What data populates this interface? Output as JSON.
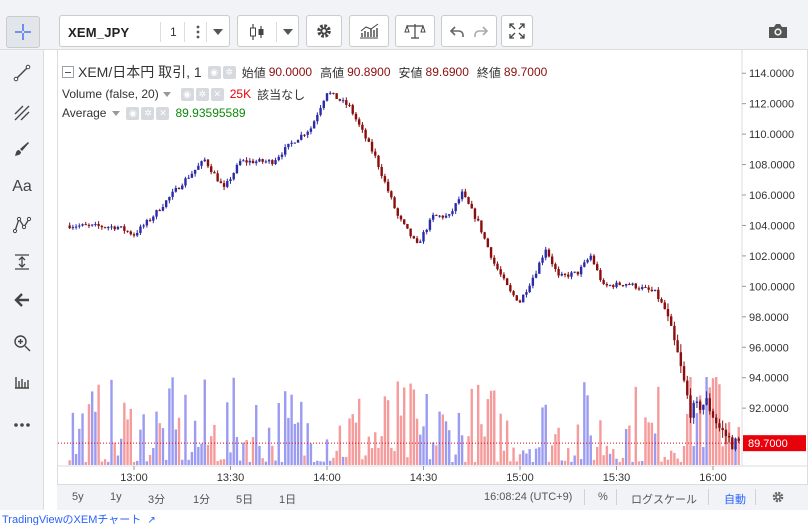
{
  "toolbar": {
    "symbol": "XEM_JPY",
    "interval": "1",
    "icons": [
      "crosshair-icon",
      "more-vert-icon",
      "dropdown-icon",
      "candles-icon",
      "gear-icon",
      "indicators-icon",
      "compare-icon",
      "undo-icon",
      "redo-icon",
      "fullscreen-icon",
      "camera-icon"
    ]
  },
  "left_tools": [
    "crosshair-icon",
    "trendline-icon",
    "fib-icon",
    "brush-icon",
    "text-icon",
    "pattern-icon",
    "measure-icon",
    "back-arrow-icon",
    "zoom-in-icon",
    "ruler-icon",
    "more-icon"
  ],
  "text_tool_label": "Aa",
  "legend": {
    "main": {
      "title": "XEM/日本円 取引, 1",
      "open_label": "始値",
      "open": "90.0000",
      "high_label": "高値",
      "high": "90.8900",
      "low_label": "安値",
      "low": "89.6900",
      "close_label": "終値",
      "close": "89.7000"
    },
    "volume": {
      "label": "Volume (false, 20)",
      "value": "25K",
      "na": "該当なし"
    },
    "average": {
      "label": "Average",
      "value": "89.93595589"
    }
  },
  "price_axis": {
    "labels": [
      "114.0000",
      "112.0000",
      "110.0000",
      "108.0000",
      "106.0000",
      "104.0000",
      "102.0000",
      "100.0000",
      "98.0000",
      "96.0000",
      "94.0000",
      "92.0000"
    ],
    "last_price": "89.7000",
    "last_price_color": "#e8000b"
  },
  "time_axis": {
    "labels": [
      "13:00",
      "13:30",
      "14:00",
      "14:30",
      "15:00",
      "15:30",
      "16:00"
    ]
  },
  "chart_data": {
    "type": "candlestick",
    "x_start": "12:39",
    "x_end": "16:08",
    "ylim": [
      88.2,
      115.0
    ],
    "up_color": "#2b2ba8",
    "down_color": "#8b0e0e",
    "keypoints": [
      {
        "time": "12:40",
        "price": 104.0
      },
      {
        "time": "12:55",
        "price": 103.9
      },
      {
        "time": "13:00",
        "price": 103.4
      },
      {
        "time": "13:05",
        "price": 104.4
      },
      {
        "time": "13:15",
        "price": 106.8
      },
      {
        "time": "13:22",
        "price": 108.3
      },
      {
        "time": "13:28",
        "price": 106.4
      },
      {
        "time": "13:33",
        "price": 108.2
      },
      {
        "time": "13:43",
        "price": 108.2
      },
      {
        "time": "13:50",
        "price": 109.6
      },
      {
        "time": "13:55",
        "price": 110.4
      },
      {
        "time": "14:00",
        "price": 112.8
      },
      {
        "time": "14:07",
        "price": 111.8
      },
      {
        "time": "14:15",
        "price": 108.5
      },
      {
        "time": "14:22",
        "price": 104.6
      },
      {
        "time": "14:28",
        "price": 102.7
      },
      {
        "time": "14:33",
        "price": 104.6
      },
      {
        "time": "14:38",
        "price": 104.6
      },
      {
        "time": "14:42",
        "price": 106.1
      },
      {
        "time": "14:47",
        "price": 104.2
      },
      {
        "time": "14:52",
        "price": 101.5
      },
      {
        "time": "14:57",
        "price": 99.6
      },
      {
        "time": "15:00",
        "price": 99.0
      },
      {
        "time": "15:05",
        "price": 101.0
      },
      {
        "time": "15:08",
        "price": 102.5
      },
      {
        "time": "15:12",
        "price": 100.6
      },
      {
        "time": "15:18",
        "price": 100.9
      },
      {
        "time": "15:22",
        "price": 102.0
      },
      {
        "time": "15:26",
        "price": 100.0
      },
      {
        "time": "15:33",
        "price": 100.2
      },
      {
        "time": "15:42",
        "price": 99.6
      },
      {
        "time": "15:45",
        "price": 98.5
      },
      {
        "time": "15:49",
        "price": 95.5
      },
      {
        "time": "15:53",
        "price": 91.8
      },
      {
        "time": "15:58",
        "price": 92.4
      },
      {
        "time": "16:02",
        "price": 90.7
      },
      {
        "time": "16:06",
        "price": 89.7
      }
    ],
    "volume_colors": {
      "up": "#8a8af0",
      "down": "#f38a8a"
    }
  },
  "bottom_bar": {
    "ranges": [
      "5y",
      "1y",
      "3分",
      "1分",
      "5日",
      "1日"
    ],
    "clock": "16:08:24 (UTC+9)",
    "percent": "%",
    "log": "ログスケール",
    "auto": "自動"
  },
  "footer": {
    "link": "TradingViewのXEMチャート"
  }
}
